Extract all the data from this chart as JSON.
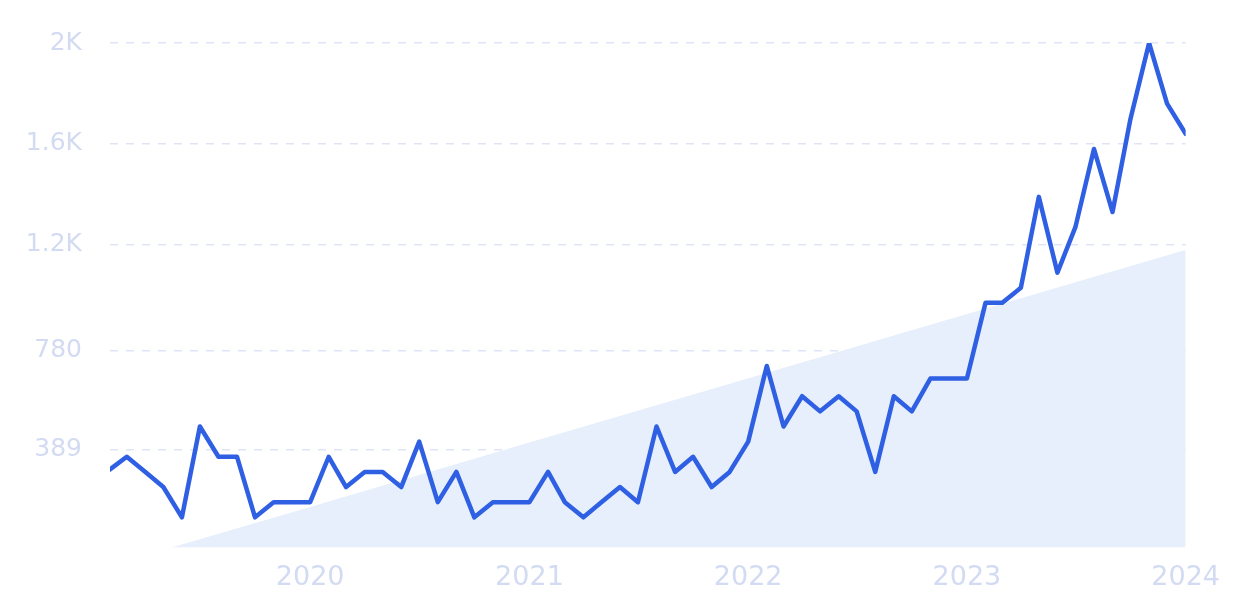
{
  "chart_data": {
    "type": "line",
    "x": [
      "2019-02",
      "2019-03",
      "2019-04",
      "2019-05",
      "2019-06",
      "2019-07",
      "2019-08",
      "2019-09",
      "2019-10",
      "2019-11",
      "2019-12",
      "2020-01",
      "2020-02",
      "2020-03",
      "2020-04",
      "2020-05",
      "2020-06",
      "2020-07",
      "2020-08",
      "2020-09",
      "2020-10",
      "2020-11",
      "2020-12",
      "2021-01",
      "2021-02",
      "2021-03",
      "2021-04",
      "2021-05",
      "2021-06",
      "2021-07",
      "2021-08",
      "2021-09",
      "2021-10",
      "2021-11",
      "2021-12",
      "2022-01",
      "2022-02",
      "2022-03",
      "2022-04",
      "2022-05",
      "2022-06",
      "2022-07",
      "2022-08",
      "2022-09",
      "2022-10",
      "2022-11",
      "2022-12",
      "2023-01",
      "2023-02",
      "2023-03",
      "2023-04",
      "2023-05",
      "2023-06",
      "2023-07",
      "2023-08",
      "2023-09",
      "2023-10",
      "2023-11",
      "2023-12",
      "2024-01"
    ],
    "series": [
      {
        "color": "#2f5fe3",
        "values": [
          310,
          360,
          300,
          240,
          120,
          480,
          360,
          360,
          120,
          180,
          180,
          180,
          360,
          240,
          300,
          300,
          240,
          420,
          180,
          300,
          120,
          180,
          180,
          180,
          300,
          180,
          120,
          180,
          240,
          180,
          480,
          300,
          360,
          240,
          300,
          420,
          720,
          480,
          600,
          540,
          600,
          540,
          300,
          600,
          540,
          670,
          670,
          670,
          970,
          970,
          1030,
          1390,
          1090,
          1270,
          1580,
          1330,
          1700,
          2000,
          1760,
          1640
        ]
      },
      {
        "type": "area",
        "color": "#e6effb",
        "x": [
          "2019-05-15",
          "2024-01"
        ],
        "values": [
          0,
          1180
        ]
      }
    ],
    "xlim": [
      "2019-02",
      "2024-01"
    ],
    "xticks": [
      "2020",
      "2021",
      "2022",
      "2023",
      "2024"
    ],
    "ylim": [
      0,
      2000
    ],
    "yticks": [
      389,
      780,
      {
        "value": 1200,
        "label": "1.2K"
      },
      {
        "value": 1600,
        "label": "1.6K"
      },
      {
        "value": 2000,
        "label": "2K"
      }
    ],
    "grid": "y",
    "legend": false,
    "marker": "none",
    "line_style": "solid"
  }
}
